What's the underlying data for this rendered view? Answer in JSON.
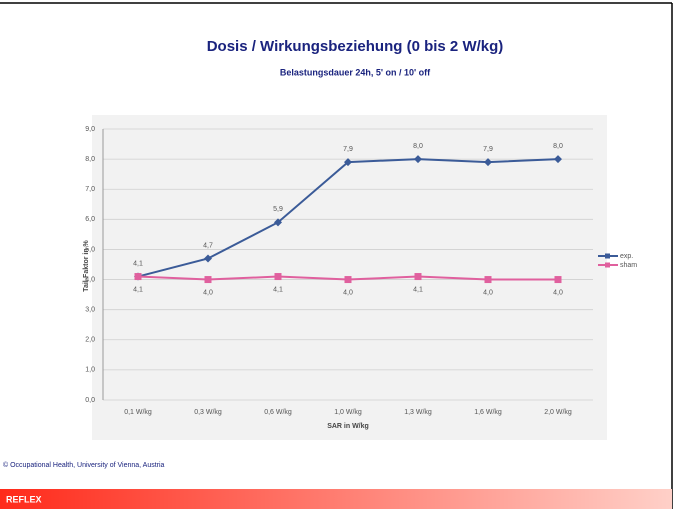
{
  "chart_data": {
    "type": "line",
    "title": "Dosis / Wirkungsbeziehung (0 bis 2 W/kg)",
    "subtitle": "Belastungsdauer 24h, 5' on / 10' off",
    "x_label": "SAR in W/kg",
    "y_label": "Tail-Faktor in %",
    "categories": [
      "0,1 W/kg",
      "0,3 W/kg",
      "0,6 W/kg",
      "1,0 W/kg",
      "1,3 W/kg",
      "1,6 W/kg",
      "2,0 W/kg"
    ],
    "series": [
      {
        "name": "exp.",
        "color": "#3b5b98",
        "marker": "diamond",
        "label_position": "above",
        "values": [
          4.1,
          4.7,
          5.9,
          7.9,
          8.0,
          7.9,
          8.0
        ],
        "value_labels": [
          "4,1",
          "4,7",
          "5,9",
          "7,9",
          "8,0",
          "7,9",
          "8,0"
        ]
      },
      {
        "name": "sham",
        "color": "#e0609e",
        "marker": "square",
        "label_position": "below",
        "values": [
          4.1,
          4.0,
          4.1,
          4.0,
          4.1,
          4.0,
          4.0
        ],
        "value_labels": [
          "4,1",
          "4,0",
          "4,1",
          "4,0",
          "4,1",
          "4,0",
          "4,0"
        ]
      }
    ],
    "ylim": [
      0,
      9
    ],
    "yticks": [
      {
        "value": 0,
        "label": "0,0"
      },
      {
        "value": 1,
        "label": "1,0"
      },
      {
        "value": 2,
        "label": "2,0"
      },
      {
        "value": 3,
        "label": "3,0"
      },
      {
        "value": 4,
        "label": "4,0"
      },
      {
        "value": 5,
        "label": "5,0"
      },
      {
        "value": 6,
        "label": "6,0"
      },
      {
        "value": 7,
        "label": "7,0"
      },
      {
        "value": 8,
        "label": "8,0"
      },
      {
        "value": 9,
        "label": "9,0"
      }
    ],
    "grid": true,
    "legend": "right"
  },
  "footer": {
    "copyright": "© Occupational Health, University of Vienna, Austria",
    "brand": "REFLEX"
  }
}
